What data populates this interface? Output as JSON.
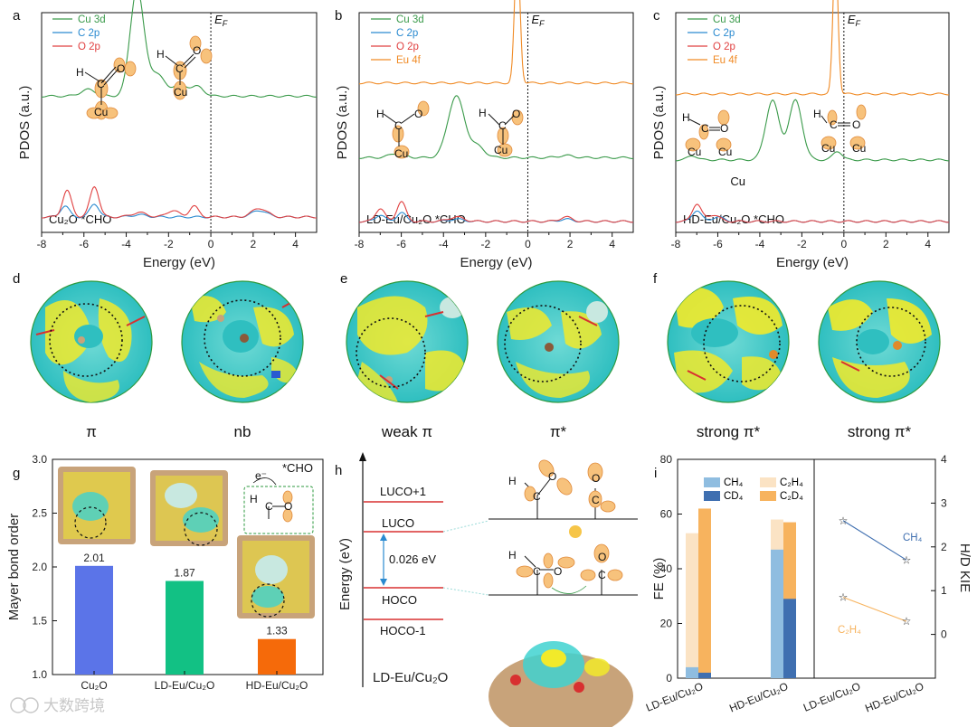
{
  "panel_letters": [
    "a",
    "b",
    "c",
    "d",
    "e",
    "f",
    "g",
    "h",
    "i"
  ],
  "chart_data": [
    {
      "panel": "a",
      "type": "line",
      "title": "",
      "xlabel": "Energy (eV)",
      "ylabel": "PDOS (a.u.)",
      "xlim": [
        -8,
        5
      ],
      "xticks": [
        -8,
        -6,
        -4,
        -2,
        0,
        2,
        4
      ],
      "fermi_label": "E_F",
      "fermi_label_main": "E",
      "fermi_label_sub": "F",
      "fermi_x": 0,
      "legend": [
        "Cu 3d",
        "C 2p",
        "O 2p"
      ],
      "annotation": "Cu₂O *CHO",
      "series": [
        {
          "name": "Cu 3d",
          "color": "#3a9a4a",
          "offset": 0.62,
          "peaks": [
            [
              -5.8,
              0.03,
              0.5
            ],
            [
              -3.5,
              0.48,
              0.45
            ],
            [
              -2.6,
              0.1,
              0.6
            ],
            [
              -1.4,
              0.05,
              0.5
            ],
            [
              -0.6,
              0.04,
              0.4
            ]
          ]
        },
        {
          "name": "C 2p",
          "color": "#2a8ad0",
          "offset": 0.07,
          "peaks": [
            [
              -6.9,
              0.05,
              0.3
            ],
            [
              -5.5,
              0.06,
              0.3
            ],
            [
              -3.4,
              0.01,
              0.5
            ],
            [
              2.3,
              0.03,
              0.5
            ]
          ]
        },
        {
          "name": "O 2p",
          "color": "#e04040",
          "offset": 0.07,
          "peaks": [
            [
              -6.8,
              0.12,
              0.3
            ],
            [
              -5.5,
              0.14,
              0.3
            ],
            [
              -3.4,
              0.02,
              0.5
            ],
            [
              -1.8,
              0.03,
              0.4
            ],
            [
              -0.8,
              0.05,
              0.3
            ],
            [
              2.3,
              0.04,
              0.5
            ]
          ]
        }
      ]
    },
    {
      "panel": "b",
      "type": "line",
      "title": "",
      "xlabel": "Energy (eV)",
      "ylabel": "PDOS (a.u.)",
      "xlim": [
        -8,
        5
      ],
      "xticks": [
        -8,
        -6,
        -4,
        -2,
        0,
        2,
        4
      ],
      "fermi_label": "E_F",
      "fermi_label_main": "E",
      "fermi_label_sub": "F",
      "fermi_x": 0,
      "legend": [
        "Cu 3d",
        "C 2p",
        "O 2p",
        "Eu 4f"
      ],
      "annotation": "LD-Eu/Cu₂O *CHO",
      "series": [
        {
          "name": "Cu 3d",
          "color": "#3a9a4a",
          "offset": 0.34,
          "peaks": [
            [
              -6.2,
              0.02,
              0.5
            ],
            [
              -3.4,
              0.28,
              0.55
            ],
            [
              -2.4,
              0.05,
              0.5
            ],
            [
              1.8,
              0.01,
              0.5
            ]
          ]
        },
        {
          "name": "C 2p",
          "color": "#2a8ad0",
          "offset": 0.05,
          "peaks": [
            [
              -7.0,
              0.03,
              0.3
            ],
            [
              -6.0,
              0.04,
              0.3
            ],
            [
              -3.4,
              0.01,
              0.5
            ],
            [
              1.8,
              0.01,
              0.4
            ]
          ]
        },
        {
          "name": "O 2p",
          "color": "#e04040",
          "offset": 0.05,
          "peaks": [
            [
              -7.0,
              0.06,
              0.3
            ],
            [
              -6.0,
              0.09,
              0.3
            ],
            [
              -3.4,
              0.02,
              0.5
            ],
            [
              1.8,
              0.02,
              0.4
            ]
          ]
        },
        {
          "name": "Eu 4f",
          "color": "#f08a24",
          "offset": 0.68,
          "peaks": [
            [
              -0.5,
              0.62,
              0.18
            ]
          ]
        }
      ]
    },
    {
      "panel": "c",
      "type": "line",
      "title": "",
      "xlabel": "Energy (eV)",
      "ylabel": "PDOS (a.u.)",
      "xlim": [
        -8,
        5
      ],
      "xticks": [
        -8,
        -6,
        -4,
        -2,
        0,
        2,
        4
      ],
      "fermi_label": "E_F",
      "fermi_label_main": "E",
      "fermi_label_sub": "F",
      "fermi_x": 0,
      "legend": [
        "Cu 3d",
        "C 2p",
        "O 2p",
        "Eu 4f"
      ],
      "annotation": "HD-Eu/Cu₂O *CHO",
      "extra_label": "Cu",
      "series": [
        {
          "name": "Cu 3d",
          "color": "#3a9a4a",
          "offset": 0.33,
          "peaks": [
            [
              -7.2,
              0.02,
              0.3
            ],
            [
              -3.4,
              0.27,
              0.45
            ],
            [
              -2.3,
              0.27,
              0.45
            ],
            [
              -0.3,
              0.04,
              0.3
            ]
          ]
        },
        {
          "name": "C 2p",
          "color": "#2a8ad0",
          "offset": 0.05,
          "peaks": [
            [
              -7.0,
              0.05,
              0.3
            ],
            [
              -6.0,
              0.02,
              0.4
            ]
          ]
        },
        {
          "name": "O 2p",
          "color": "#e04040",
          "offset": 0.05,
          "peaks": [
            [
              -7.0,
              0.08,
              0.3
            ],
            [
              -6.2,
              0.03,
              0.4
            ]
          ]
        },
        {
          "name": "Eu 4f",
          "color": "#f08a24",
          "offset": 0.63,
          "peaks": [
            [
              -0.4,
              0.65,
              0.17
            ]
          ]
        }
      ]
    },
    {
      "panel": "g",
      "type": "bar",
      "title": "",
      "xlabel": "",
      "ylabel": "Mayer bond order",
      "ylim": [
        1.0,
        3.0
      ],
      "yticks": [
        1.0,
        1.5,
        2.0,
        2.5,
        3.0
      ],
      "categories": [
        "Cu₂O",
        "LD-Eu/Cu₂O",
        "HD-Eu/Cu₂O"
      ],
      "values": [
        2.01,
        1.87,
        1.33
      ],
      "value_labels": [
        "2.01",
        "1.87",
        "1.33"
      ],
      "colors": [
        "#5b74e8",
        "#12c184",
        "#f56a0a"
      ],
      "annotation": "*CHO",
      "electron_label": "e⁻",
      "molecule_labels": [
        "H",
        "C",
        "O"
      ]
    },
    {
      "panel": "i",
      "type": "bar",
      "title": "",
      "xlabel": "",
      "ylabel": "FE (%)",
      "ylim": [
        0,
        80
      ],
      "yticks": [
        0,
        20,
        40,
        60,
        80
      ],
      "categories": [
        "LD-Eu/Cu₂O",
        "HD-Eu/Cu₂O"
      ],
      "series": [
        {
          "name": "CH₄",
          "color": "#8fbde0",
          "values": [
            4,
            47
          ]
        },
        {
          "name": "CD₄",
          "color": "#3f6fb0",
          "values": [
            2,
            29
          ]
        },
        {
          "name": "C₂H₄",
          "color": "#fbe3c4",
          "values": [
            53,
            58
          ]
        },
        {
          "name": "C₂D₄",
          "color": "#f7b35e",
          "values": [
            62,
            57
          ]
        }
      ],
      "legend": [
        "CH₄",
        "CD₄",
        "C₂H₄",
        "C₂D₄"
      ],
      "y2label": "H/D KIE",
      "y2lim": [
        -1,
        4
      ],
      "y2ticks": [
        0,
        1,
        2,
        3,
        4
      ],
      "kie_series": [
        {
          "name": "CH₄",
          "color": "#3f6fb0",
          "marker": "star",
          "values": [
            2.6,
            1.7
          ]
        },
        {
          "name": "C₂H₄",
          "color": "#f7b35e",
          "marker": "star",
          "values": [
            0.85,
            0.3
          ]
        }
      ],
      "kie_categories": [
        "LD-Eu/Cu₂O",
        "HD-Eu/Cu₂O"
      ]
    }
  ],
  "panel_d": {
    "captions": [
      "π",
      "nb"
    ]
  },
  "panel_e": {
    "captions": [
      "weak π",
      "π*"
    ]
  },
  "panel_f": {
    "captions": [
      "strong π*",
      "strong π*"
    ]
  },
  "panel_h": {
    "ylabel": "Energy (eV)",
    "levels": [
      "LUCO+1",
      "LUCO",
      "HOCO",
      "HOCO-1"
    ],
    "gap_label": "0.026 eV",
    "caption": "LD-Eu/Cu₂O",
    "molecule_labels": [
      "H",
      "C",
      "O"
    ]
  },
  "molecule_labels_a": [
    "H",
    "C",
    "O",
    "Cu"
  ],
  "watermark": "大数跨境",
  "colors": {
    "cyan": "#3fd2d0",
    "yellow": "#f2ea2a",
    "cu": "#c8a37a",
    "orbital": "#f7c27c"
  }
}
